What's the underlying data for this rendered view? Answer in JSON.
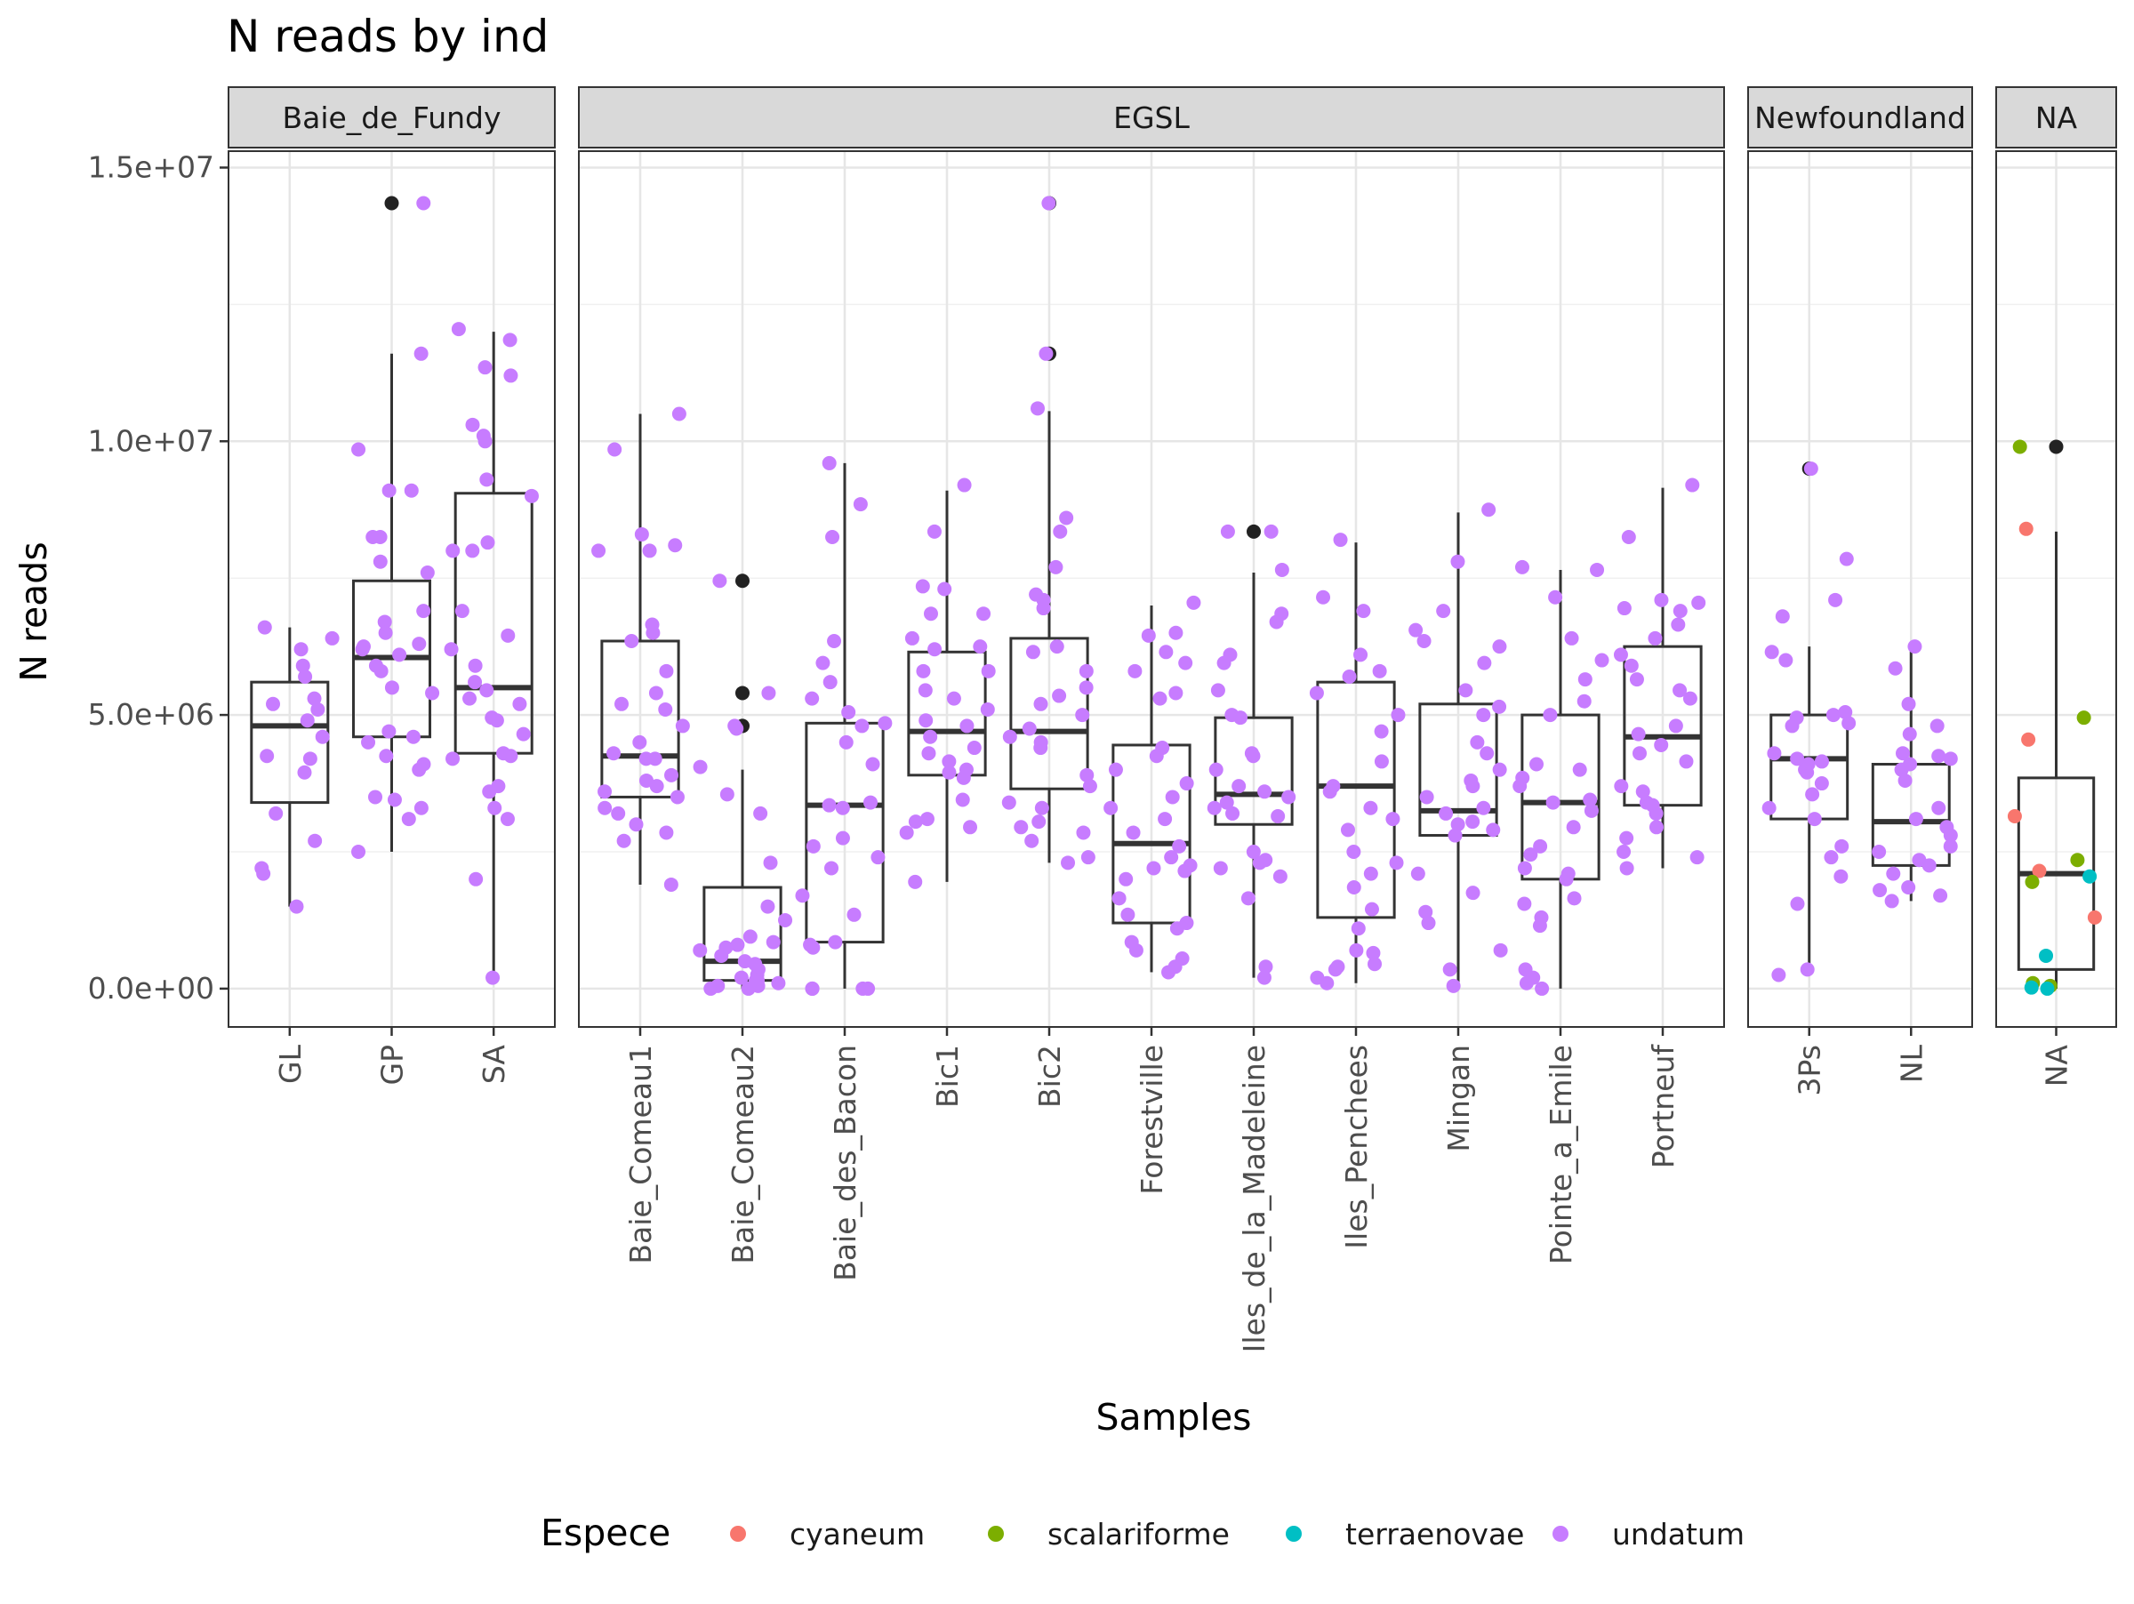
{
  "chart_data": {
    "type": "boxplot+jitter",
    "title": "N reads by ind",
    "xlabel": "Samples",
    "ylabel": "N reads",
    "ylim": [
      -700000,
      15300000
    ],
    "y_ticks": [
      0,
      5000000,
      10000000,
      15000000
    ],
    "y_tick_labels": [
      "0.0e+00",
      "5.0e+06",
      "1.0e+07",
      "1.5e+07"
    ],
    "grid": true,
    "legend": {
      "title": "Espece",
      "position": "bottom",
      "items": [
        {
          "name": "cyaneum",
          "color": "#F8766D"
        },
        {
          "name": "scalariforme",
          "color": "#7CAE00"
        },
        {
          "name": "terraenovae",
          "color": "#00BFC4"
        },
        {
          "name": "undatum",
          "color": "#C77CFF"
        }
      ]
    },
    "outlier_color": "#222222",
    "facets": [
      {
        "name": "Baie_de_Fundy",
        "groups": [
          {
            "label": "GL",
            "box": {
              "lower_whisker": 1500000,
              "q1": 3400000,
              "median": 4800000,
              "q3": 5600000,
              "upper_whisker": 6600000
            },
            "outliers": [],
            "points": [
              5900000,
              5200000,
              6200000,
              6400000,
              5700000,
              3950000,
              2200000,
              4600000,
              4900000,
              5100000,
              4200000,
              3200000,
              2700000,
              2100000,
              1500000,
              4250000,
              6600000,
              5300000
            ]
          },
          {
            "label": "GP",
            "box": {
              "lower_whisker": 2500000,
              "q1": 4600000,
              "median": 6050000,
              "q3": 7450000,
              "upper_whisker": 11600000
            },
            "outliers": [
              14350000
            ],
            "points": [
              14350000,
              11600000,
              9850000,
              9100000,
              9100000,
              8250000,
              8250000,
              7800000,
              7600000,
              6900000,
              6700000,
              6500000,
              6300000,
              6250000,
              6200000,
              5900000,
              5800000,
              5500000,
              5400000,
              4700000,
              4600000,
              4500000,
              4250000,
              4100000,
              4000000,
              3500000,
              3450000,
              3300000,
              3100000,
              2500000,
              6100000
            ]
          },
          {
            "label": "SA",
            "box": {
              "lower_whisker": 200000,
              "q1": 4300000,
              "median": 5500000,
              "q3": 9050000,
              "upper_whisker": 12000000
            },
            "outliers": [],
            "points": [
              12050000,
              11850000,
              11350000,
              11200000,
              10300000,
              10100000,
              10000000,
              9300000,
              9000000,
              8150000,
              8000000,
              8000000,
              6900000,
              6450000,
              6200000,
              5900000,
              5600000,
              5450000,
              5300000,
              5200000,
              4950000,
              4900000,
              4650000,
              4300000,
              4250000,
              4200000,
              3700000,
              3600000,
              3300000,
              3100000,
              2000000,
              200000
            ]
          }
        ]
      },
      {
        "name": "EGSL",
        "groups": [
          {
            "label": "Baie_Comeau1",
            "box": {
              "lower_whisker": 1900000,
              "q1": 3500000,
              "median": 4250000,
              "q3": 6350000,
              "upper_whisker": 10500000
            },
            "outliers": [],
            "points": [
              10500000,
              9850000,
              8300000,
              8100000,
              8000000,
              8000000,
              6650000,
              6500000,
              6350000,
              5800000,
              5400000,
              5200000,
              5100000,
              4800000,
              4500000,
              4300000,
              4200000,
              4200000,
              3900000,
              3800000,
              3700000,
              3600000,
              3500000,
              3300000,
              3200000,
              3000000,
              2850000,
              2700000,
              1900000
            ]
          },
          {
            "label": "Baie_Comeau2",
            "box": {
              "lower_whisker": 0,
              "q1": 150000,
              "median": 500000,
              "q3": 1850000,
              "upper_whisker": 4000000
            },
            "outliers": [
              7450000,
              5400000,
              4800000
            ],
            "points": [
              7450000,
              5400000,
              4800000,
              4750000,
              4050000,
              3550000,
              3200000,
              2300000,
              1500000,
              1250000,
              950000,
              850000,
              750000,
              700000,
              600000,
              500000,
              450000,
              350000,
              250000,
              200000,
              150000,
              100000,
              50000,
              0,
              0,
              50000,
              150000,
              800000
            ]
          },
          {
            "label": "Baie_des_Bacon",
            "box": {
              "lower_whisker": 0,
              "q1": 850000,
              "median": 3350000,
              "q3": 4850000,
              "upper_whisker": 9600000
            },
            "outliers": [],
            "points": [
              9600000,
              8850000,
              8250000,
              6350000,
              5950000,
              5600000,
              5300000,
              5050000,
              4850000,
              4800000,
              4500000,
              4100000,
              3400000,
              3350000,
              3300000,
              2750000,
              2600000,
              2400000,
              2200000,
              1700000,
              1350000,
              850000,
              800000,
              750000,
              0,
              0,
              0,
              0
            ]
          },
          {
            "label": "Bic1",
            "box": {
              "lower_whisker": 1950000,
              "q1": 3900000,
              "median": 4700000,
              "q3": 6150000,
              "upper_whisker": 9100000
            },
            "outliers": [],
            "points": [
              9200000,
              8350000,
              7350000,
              7300000,
              6850000,
              6850000,
              6400000,
              6250000,
              6200000,
              5800000,
              5800000,
              5450000,
              5300000,
              5100000,
              4900000,
              4800000,
              4600000,
              4400000,
              4300000,
              4150000,
              4000000,
              3950000,
              3850000,
              3450000,
              3100000,
              3050000,
              2950000,
              2850000,
              1950000
            ]
          },
          {
            "label": "Bic2",
            "box": {
              "lower_whisker": 2300000,
              "q1": 3650000,
              "median": 4700000,
              "q3": 6400000,
              "upper_whisker": 10550000
            },
            "outliers": [
              14350000,
              11600000
            ],
            "points": [
              14350000,
              11600000,
              10600000,
              8600000,
              8350000,
              7700000,
              7200000,
              7100000,
              6950000,
              6250000,
              6150000,
              5800000,
              5500000,
              5350000,
              5200000,
              5000000,
              4750000,
              4600000,
              4500000,
              4400000,
              3900000,
              3700000,
              3400000,
              3300000,
              3050000,
              2950000,
              2850000,
              2700000,
              2400000,
              2300000
            ]
          },
          {
            "label": "Forestville",
            "box": {
              "lower_whisker": 300000,
              "q1": 1200000,
              "median": 2650000,
              "q3": 4450000,
              "upper_whisker": 7000000
            },
            "outliers": [],
            "points": [
              7050000,
              6500000,
              6450000,
              6150000,
              5950000,
              5800000,
              5400000,
              5300000,
              4400000,
              4250000,
              4000000,
              3750000,
              3500000,
              3300000,
              3100000,
              2850000,
              2600000,
              2400000,
              2250000,
              2200000,
              2150000,
              2000000,
              1650000,
              1350000,
              1200000,
              1100000,
              850000,
              700000,
              550000,
              400000,
              300000
            ]
          },
          {
            "label": "Iles_de_la_Madeleine",
            "box": {
              "lower_whisker": 200000,
              "q1": 3000000,
              "median": 3550000,
              "q3": 4950000,
              "upper_whisker": 7600000
            },
            "outliers": [
              8350000
            ],
            "points": [
              8350000,
              8350000,
              7650000,
              6850000,
              6700000,
              6100000,
              5950000,
              5450000,
              5000000,
              4950000,
              4300000,
              4250000,
              4000000,
              3700000,
              3600000,
              3500000,
              3400000,
              3300000,
              3200000,
              3150000,
              2500000,
              2350000,
              2300000,
              2200000,
              2050000,
              1650000,
              400000,
              200000
            ]
          },
          {
            "label": "Iles_Penchees",
            "box": {
              "lower_whisker": 100000,
              "q1": 1300000,
              "median": 3700000,
              "q3": 5600000,
              "upper_whisker": 8150000
            },
            "outliers": [],
            "points": [
              8200000,
              7150000,
              6900000,
              6100000,
              5800000,
              5700000,
              5400000,
              5000000,
              4700000,
              4150000,
              3700000,
              3600000,
              3300000,
              3100000,
              2900000,
              2500000,
              2300000,
              2100000,
              1850000,
              1450000,
              1100000,
              700000,
              650000,
              450000,
              400000,
              350000,
              200000,
              100000
            ]
          },
          {
            "label": "Mingan",
            "box": {
              "lower_whisker": 0,
              "q1": 2800000,
              "median": 3250000,
              "q3": 5200000,
              "upper_whisker": 8700000
            },
            "outliers": [],
            "points": [
              8750000,
              7800000,
              6900000,
              6550000,
              6350000,
              6250000,
              5950000,
              5450000,
              5150000,
              5000000,
              4500000,
              4300000,
              4000000,
              3800000,
              3700000,
              3500000,
              3300000,
              3200000,
              3050000,
              3000000,
              2900000,
              2800000,
              2100000,
              1750000,
              1400000,
              1200000,
              700000,
              350000,
              50000
            ]
          },
          {
            "label": "Pointe_a_Emile",
            "box": {
              "lower_whisker": 0,
              "q1": 2000000,
              "median": 3400000,
              "q3": 5000000,
              "upper_whisker": 7650000
            },
            "outliers": [],
            "points": [
              7700000,
              7650000,
              7150000,
              6400000,
              6000000,
              5650000,
              5250000,
              5000000,
              4100000,
              4000000,
              3850000,
              3700000,
              3450000,
              3400000,
              3250000,
              2950000,
              2600000,
              2450000,
              2200000,
              2100000,
              2000000,
              1650000,
              1550000,
              1300000,
              1150000,
              350000,
              200000,
              100000,
              0
            ]
          },
          {
            "label": "Portneuf",
            "box": {
              "lower_whisker": 2200000,
              "q1": 3350000,
              "median": 4600000,
              "q3": 6250000,
              "upper_whisker": 9150000
            },
            "outliers": [],
            "points": [
              9200000,
              8250000,
              7100000,
              7050000,
              6950000,
              6900000,
              6650000,
              6400000,
              6100000,
              5900000,
              5650000,
              5450000,
              5300000,
              4800000,
              4650000,
              4450000,
              4300000,
              4150000,
              3700000,
              3600000,
              3400000,
              3350000,
              3200000,
              2950000,
              2750000,
              2500000,
              2400000,
              2200000
            ]
          }
        ]
      },
      {
        "name": "Newfoundland",
        "groups": [
          {
            "label": "3Ps",
            "box": {
              "lower_whisker": 250000,
              "q1": 3100000,
              "median": 4200000,
              "q3": 5000000,
              "upper_whisker": 6250000
            },
            "outliers": [
              9500000
            ],
            "points": [
              9500000,
              7850000,
              7100000,
              6800000,
              6150000,
              6000000,
              5050000,
              5000000,
              4950000,
              4850000,
              4800000,
              4300000,
              4200000,
              4150000,
              4100000,
              4000000,
              3950000,
              3750000,
              3550000,
              3300000,
              3100000,
              2600000,
              2400000,
              2050000,
              1550000,
              350000,
              250000
            ]
          },
          {
            "label": "NL",
            "box": {
              "lower_whisker": 1600000,
              "q1": 2250000,
              "median": 3050000,
              "q3": 4100000,
              "upper_whisker": 6200000
            },
            "outliers": [],
            "points": [
              6250000,
              5850000,
              5200000,
              4800000,
              4650000,
              4300000,
              4250000,
              4200000,
              4100000,
              4000000,
              3800000,
              3300000,
              3100000,
              2950000,
              2800000,
              2600000,
              2500000,
              2350000,
              2250000,
              2100000,
              1850000,
              1800000,
              1700000,
              1600000
            ]
          }
        ]
      },
      {
        "name": "NA",
        "groups": [
          {
            "label": "NA",
            "box": {
              "lower_whisker": 0,
              "q1": 350000,
              "median": 2100000,
              "q3": 3850000,
              "upper_whisker": 8350000
            },
            "outliers": [
              9900000
            ],
            "colored_points": [
              {
                "y": 9900000,
                "species": "scalariforme"
              },
              {
                "y": 8400000,
                "species": "cyaneum"
              },
              {
                "y": 4950000,
                "species": "scalariforme"
              },
              {
                "y": 4550000,
                "species": "cyaneum"
              },
              {
                "y": 3150000,
                "species": "cyaneum"
              },
              {
                "y": 2350000,
                "species": "scalariforme"
              },
              {
                "y": 2150000,
                "species": "cyaneum"
              },
              {
                "y": 2050000,
                "species": "terraenovae"
              },
              {
                "y": 1950000,
                "species": "scalariforme"
              },
              {
                "y": 1300000,
                "species": "cyaneum"
              },
              {
                "y": 600000,
                "species": "terraenovae"
              },
              {
                "y": 100000,
                "species": "scalariforme"
              },
              {
                "y": 50000,
                "species": "scalariforme"
              },
              {
                "y": 20000,
                "species": "terraenovae"
              },
              {
                "y": 0,
                "species": "terraenovae"
              }
            ]
          }
        ]
      }
    ]
  }
}
